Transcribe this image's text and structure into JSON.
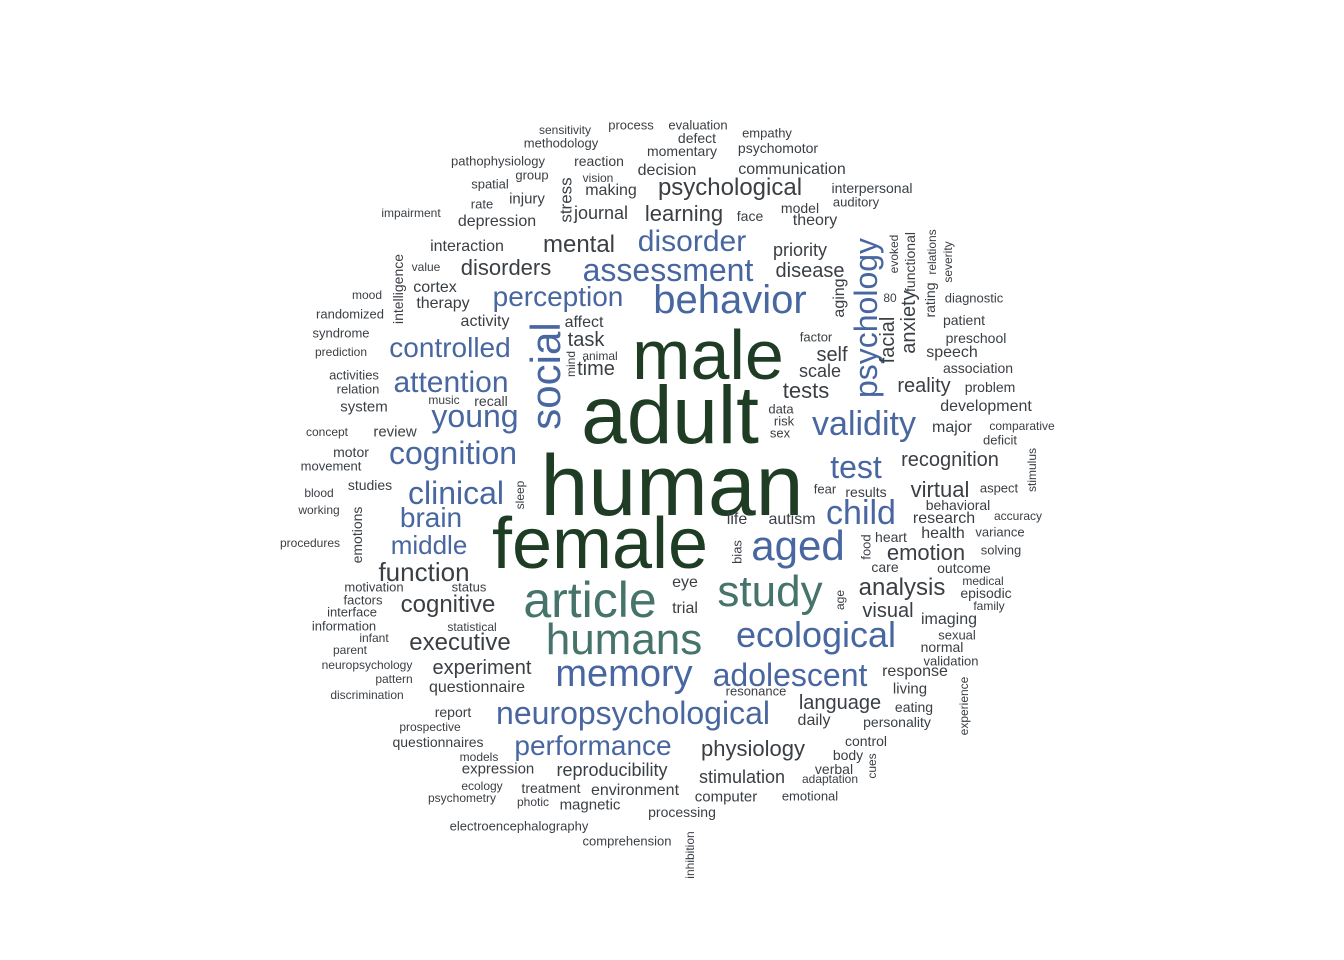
{
  "colors": {
    "level1": "#1f3d24",
    "level2": "#46736a",
    "level3": "#4866a0",
    "level4": "#3a3f44",
    "level5": "#3a3f44"
  },
  "words": [
    {
      "text": "human",
      "level": 1
    },
    {
      "text": "adult",
      "level": 1
    },
    {
      "text": "male",
      "level": 1
    },
    {
      "text": "female",
      "level": 1
    },
    {
      "text": "article",
      "level": 2
    },
    {
      "text": "humans",
      "level": 2
    },
    {
      "text": "study",
      "level": 2
    },
    {
      "text": "social",
      "level": 3
    },
    {
      "text": "behavior",
      "level": 3
    },
    {
      "text": "aged",
      "level": 3
    },
    {
      "text": "memory",
      "level": 3
    },
    {
      "text": "ecological",
      "level": 3
    },
    {
      "text": "neuropsychological",
      "level": 3
    },
    {
      "text": "adolescent",
      "level": 3
    },
    {
      "text": "assessment",
      "level": 3
    },
    {
      "text": "disorder",
      "level": 3
    },
    {
      "text": "perception",
      "level": 3
    },
    {
      "text": "controlled",
      "level": 3
    },
    {
      "text": "psychology",
      "level": 3
    },
    {
      "text": "validity",
      "level": 3
    },
    {
      "text": "cognition",
      "level": 3
    },
    {
      "text": "young",
      "level": 3
    },
    {
      "text": "attention",
      "level": 3
    },
    {
      "text": "clinical",
      "level": 3
    },
    {
      "text": "brain",
      "level": 3
    },
    {
      "text": "middle",
      "level": 3
    },
    {
      "text": "child",
      "level": 3
    },
    {
      "text": "test",
      "level": 3
    },
    {
      "text": "performance",
      "level": 3
    },
    {
      "text": "psychological",
      "level": 4
    },
    {
      "text": "mental",
      "level": 4
    },
    {
      "text": "learning",
      "level": 4
    },
    {
      "text": "disorders",
      "level": 4
    },
    {
      "text": "function",
      "level": 4
    },
    {
      "text": "cognitive",
      "level": 4
    },
    {
      "text": "executive",
      "level": 4
    },
    {
      "text": "analysis",
      "level": 4
    },
    {
      "text": "emotion",
      "level": 4
    },
    {
      "text": "virtual",
      "level": 4
    },
    {
      "text": "recognition",
      "level": 4
    },
    {
      "text": "tests",
      "level": 4
    },
    {
      "text": "reality",
      "level": 4
    },
    {
      "text": "physiology",
      "level": 4
    },
    {
      "text": "experiment",
      "level": 4
    },
    {
      "text": "language",
      "level": 4
    },
    {
      "text": "task",
      "level": 4
    },
    {
      "text": "time",
      "level": 4
    },
    {
      "text": "visual",
      "level": 4
    },
    {
      "text": "self",
      "level": 4
    },
    {
      "text": "scale",
      "level": 4
    },
    {
      "text": "reproducibility",
      "level": 4
    },
    {
      "text": "stimulation",
      "level": 4
    },
    {
      "text": "facial",
      "level": 4
    },
    {
      "text": "anxiety",
      "level": 4
    },
    {
      "text": "disease",
      "level": 4
    },
    {
      "text": "priority",
      "level": 4
    },
    {
      "text": "journal",
      "level": 5
    },
    {
      "text": "depression",
      "level": 5
    },
    {
      "text": "decision",
      "level": 5
    },
    {
      "text": "making",
      "level": 5
    },
    {
      "text": "momentary",
      "level": 5
    },
    {
      "text": "communication",
      "level": 5
    },
    {
      "text": "interaction",
      "level": 5
    },
    {
      "text": "therapy",
      "level": 5
    },
    {
      "text": "cortex",
      "level": 5
    },
    {
      "text": "activity",
      "level": 5
    },
    {
      "text": "affect",
      "level": 5
    },
    {
      "text": "theory",
      "level": 5
    },
    {
      "text": "model",
      "level": 5
    },
    {
      "text": "face",
      "level": 5
    },
    {
      "text": "interpersonal",
      "level": 5
    },
    {
      "text": "auditory",
      "level": 5
    },
    {
      "text": "process",
      "level": 5
    },
    {
      "text": "evaluation",
      "level": 5
    },
    {
      "text": "defect",
      "level": 5
    },
    {
      "text": "empathy",
      "level": 5
    },
    {
      "text": "psychomotor",
      "level": 5
    },
    {
      "text": "sensitivity",
      "level": 5
    },
    {
      "text": "methodology",
      "level": 5
    },
    {
      "text": "pathophysiology",
      "level": 5
    },
    {
      "text": "reaction",
      "level": 5
    },
    {
      "text": "group",
      "level": 5
    },
    {
      "text": "vision",
      "level": 5
    },
    {
      "text": "spatial",
      "level": 5
    },
    {
      "text": "injury",
      "level": 5
    },
    {
      "text": "rate",
      "level": 5
    },
    {
      "text": "impairment",
      "level": 5
    },
    {
      "text": "stress",
      "level": 5
    },
    {
      "text": "intelligence",
      "level": 5
    },
    {
      "text": "value",
      "level": 5
    },
    {
      "text": "mood",
      "level": 5
    },
    {
      "text": "randomized",
      "level": 5
    },
    {
      "text": "syndrome",
      "level": 5
    },
    {
      "text": "prediction",
      "level": 5
    },
    {
      "text": "activities",
      "level": 5
    },
    {
      "text": "relation",
      "level": 5
    },
    {
      "text": "system",
      "level": 5
    },
    {
      "text": "music",
      "level": 5
    },
    {
      "text": "recall",
      "level": 5
    },
    {
      "text": "review",
      "level": 5
    },
    {
      "text": "concept",
      "level": 5
    },
    {
      "text": "motor",
      "level": 5
    },
    {
      "text": "movement",
      "level": 5
    },
    {
      "text": "studies",
      "level": 5
    },
    {
      "text": "blood",
      "level": 5
    },
    {
      "text": "working",
      "level": 5
    },
    {
      "text": "procedures",
      "level": 5
    },
    {
      "text": "emotions",
      "level": 5
    },
    {
      "text": "motivation",
      "level": 5
    },
    {
      "text": "status",
      "level": 5
    },
    {
      "text": "factors",
      "level": 5
    },
    {
      "text": "interface",
      "level": 5
    },
    {
      "text": "information",
      "level": 5
    },
    {
      "text": "statistical",
      "level": 5
    },
    {
      "text": "infant",
      "level": 5
    },
    {
      "text": "parent",
      "level": 5
    },
    {
      "text": "neuropsychology",
      "level": 5
    },
    {
      "text": "pattern",
      "level": 5
    },
    {
      "text": "discrimination",
      "level": 5
    },
    {
      "text": "questionnaire",
      "level": 5
    },
    {
      "text": "report",
      "level": 5
    },
    {
      "text": "prospective",
      "level": 5
    },
    {
      "text": "questionnaires",
      "level": 5
    },
    {
      "text": "models",
      "level": 5
    },
    {
      "text": "expression",
      "level": 5
    },
    {
      "text": "ecology",
      "level": 5
    },
    {
      "text": "psychometry",
      "level": 5
    },
    {
      "text": "treatment",
      "level": 5
    },
    {
      "text": "photic",
      "level": 5
    },
    {
      "text": "magnetic",
      "level": 5
    },
    {
      "text": "environment",
      "level": 5
    },
    {
      "text": "processing",
      "level": 5
    },
    {
      "text": "computer",
      "level": 5
    },
    {
      "text": "electroencephalography",
      "level": 5
    },
    {
      "text": "comprehension",
      "level": 5
    },
    {
      "text": "inhibition",
      "level": 5
    },
    {
      "text": "mind",
      "level": 5
    },
    {
      "text": "animal",
      "level": 5
    },
    {
      "text": "aging",
      "level": 5
    },
    {
      "text": "factor",
      "level": 5
    },
    {
      "text": "80",
      "level": 5
    },
    {
      "text": "evoked",
      "level": 5
    },
    {
      "text": "functional",
      "level": 5
    },
    {
      "text": "rating",
      "level": 5
    },
    {
      "text": "relations",
      "level": 5
    },
    {
      "text": "severity",
      "level": 5
    },
    {
      "text": "diagnostic",
      "level": 5
    },
    {
      "text": "patient",
      "level": 5
    },
    {
      "text": "preschool",
      "level": 5
    },
    {
      "text": "speech",
      "level": 5
    },
    {
      "text": "association",
      "level": 5
    },
    {
      "text": "problem",
      "level": 5
    },
    {
      "text": "development",
      "level": 5
    },
    {
      "text": "major",
      "level": 5
    },
    {
      "text": "comparative",
      "level": 5
    },
    {
      "text": "deficit",
      "level": 5
    },
    {
      "text": "data",
      "level": 5
    },
    {
      "text": "risk",
      "level": 5
    },
    {
      "text": "sex",
      "level": 5
    },
    {
      "text": "fear",
      "level": 5
    },
    {
      "text": "results",
      "level": 5
    },
    {
      "text": "aspect",
      "level": 5
    },
    {
      "text": "stimulus",
      "level": 5
    },
    {
      "text": "behavioral",
      "level": 5
    },
    {
      "text": "accuracy",
      "level": 5
    },
    {
      "text": "research",
      "level": 5
    },
    {
      "text": "variance",
      "level": 5
    },
    {
      "text": "health",
      "level": 5
    },
    {
      "text": "heart",
      "level": 5
    },
    {
      "text": "solving",
      "level": 5
    },
    {
      "text": "life",
      "level": 5
    },
    {
      "text": "autism",
      "level": 5
    },
    {
      "text": "sleep",
      "level": 5
    },
    {
      "text": "bias",
      "level": 5
    },
    {
      "text": "food",
      "level": 5
    },
    {
      "text": "care",
      "level": 5
    },
    {
      "text": "outcome",
      "level": 5
    },
    {
      "text": "medical",
      "level": 5
    },
    {
      "text": "episodic",
      "level": 5
    },
    {
      "text": "family",
      "level": 5
    },
    {
      "text": "eye",
      "level": 5
    },
    {
      "text": "trial",
      "level": 5
    },
    {
      "text": "age",
      "level": 5
    },
    {
      "text": "imaging",
      "level": 5
    },
    {
      "text": "sexual",
      "level": 5
    },
    {
      "text": "normal",
      "level": 5
    },
    {
      "text": "validation",
      "level": 5
    },
    {
      "text": "response",
      "level": 5
    },
    {
      "text": "living",
      "level": 5
    },
    {
      "text": "resonance",
      "level": 5
    },
    {
      "text": "experience",
      "level": 5
    },
    {
      "text": "daily",
      "level": 5
    },
    {
      "text": "eating",
      "level": 5
    },
    {
      "text": "personality",
      "level": 5
    },
    {
      "text": "control",
      "level": 5
    },
    {
      "text": "body",
      "level": 5
    },
    {
      "text": "cues",
      "level": 5
    },
    {
      "text": "verbal",
      "level": 5
    },
    {
      "text": "adaptation",
      "level": 5
    },
    {
      "text": "emotional",
      "level": 5
    }
  ]
}
